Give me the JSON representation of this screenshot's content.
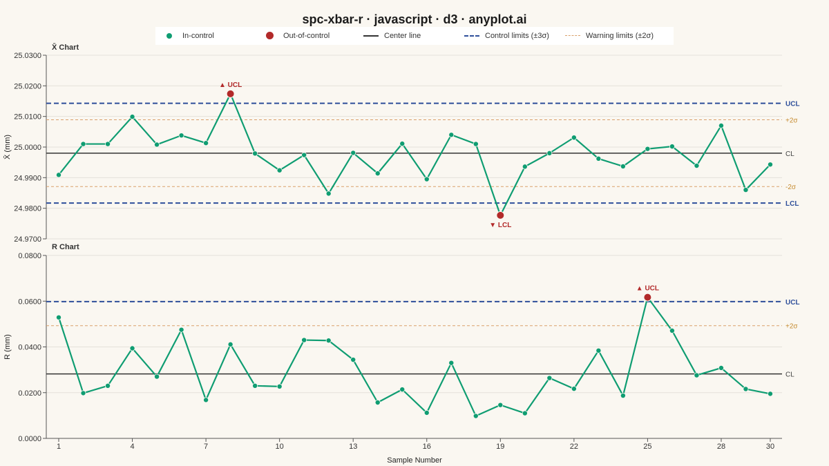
{
  "title": "spc-xbar-r · javascript · d3 · anyplot.ai",
  "legend": {
    "in_control": "In-control",
    "out_of_control": "Out-of-control",
    "center_line": "Center line",
    "control_limits": "Control limits (±3σ)",
    "warning_limits": "Warning limits (±2σ)"
  },
  "colors": {
    "in_control": "#0F9D72",
    "out_of_control": "#B22A2A",
    "center_line": "#333333",
    "control_limit": "#2D4E9A",
    "warning_limit": "#D9A06A",
    "warning_label": "#C58A2E"
  },
  "chart_data": [
    {
      "type": "line",
      "title": "X̄ Chart",
      "xlabel": "",
      "ylabel": "X̄ (mm)",
      "ylim": [
        24.97,
        25.03
      ],
      "yticks": [
        24.97,
        24.98,
        24.99,
        25.0,
        25.01,
        25.02,
        25.03
      ],
      "ytick_labels": [
        "24.9700",
        "24.9800",
        "24.9900",
        "25.0000",
        "25.0100",
        "25.0200",
        "25.0300"
      ],
      "x": [
        1,
        2,
        3,
        4,
        5,
        6,
        7,
        8,
        9,
        10,
        11,
        12,
        13,
        14,
        15,
        16,
        17,
        18,
        19,
        20,
        21,
        22,
        23,
        24,
        25,
        26,
        27,
        28,
        29,
        30
      ],
      "values": [
        24.9909,
        25.001,
        25.001,
        25.0099,
        25.0008,
        25.0038,
        25.0013,
        25.0174,
        24.9979,
        24.9924,
        24.9974,
        24.9848,
        24.9981,
        24.9914,
        25.0011,
        24.9895,
        25.004,
        25.001,
        24.9777,
        24.9936,
        24.998,
        25.0031,
        24.9962,
        24.9937,
        24.9994,
        25.0002,
        24.9939,
        25.007,
        24.986,
        24.9943
      ],
      "out_of_control": [
        8,
        19
      ],
      "center_line": 24.998,
      "ucl": 25.0143,
      "lcl": 24.9817,
      "warning_upper": 25.0089,
      "warning_lower": 24.9871,
      "labels": {
        "cl": "CL",
        "ucl": "UCL",
        "lcl": "LCL",
        "plus2": "+2σ",
        "minus2": "-2σ"
      },
      "annotations": [
        {
          "x": 8,
          "text": "▲ UCL",
          "position": "above"
        },
        {
          "x": 19,
          "text": "▼ LCL",
          "position": "below"
        }
      ],
      "grid": true
    },
    {
      "type": "line",
      "title": "R Chart",
      "xlabel": "Sample Number",
      "ylabel": "R (mm)",
      "ylim": [
        0,
        0.08
      ],
      "yticks": [
        0,
        0.02,
        0.04,
        0.06,
        0.08
      ],
      "ytick_labels": [
        "0.0000",
        "0.0200",
        "0.0400",
        "0.0600",
        "0.0800"
      ],
      "x": [
        1,
        2,
        3,
        4,
        5,
        6,
        7,
        8,
        9,
        10,
        11,
        12,
        13,
        14,
        15,
        16,
        17,
        18,
        19,
        20,
        21,
        22,
        23,
        24,
        25,
        26,
        27,
        28,
        29,
        30
      ],
      "xtick_labels": [
        "1",
        "4",
        "7",
        "10",
        "13",
        "16",
        "19",
        "22",
        "25",
        "28",
        "30"
      ],
      "xtick_values": [
        1,
        4,
        7,
        10,
        13,
        16,
        19,
        22,
        25,
        28,
        30
      ],
      "values": [
        0.0529,
        0.0198,
        0.023,
        0.0394,
        0.027,
        0.0475,
        0.0168,
        0.0411,
        0.023,
        0.0227,
        0.043,
        0.0428,
        0.0344,
        0.0157,
        0.0214,
        0.0112,
        0.033,
        0.0098,
        0.0146,
        0.011,
        0.0264,
        0.0217,
        0.0384,
        0.0187,
        0.0617,
        0.0471,
        0.0276,
        0.0308,
        0.0216,
        0.0195
      ],
      "out_of_control": [
        25
      ],
      "center_line": 0.0282,
      "ucl": 0.0598,
      "warning_upper": 0.0493,
      "labels": {
        "cl": "CL",
        "ucl": "UCL",
        "plus2": "+2σ"
      },
      "annotations": [
        {
          "x": 25,
          "text": "▲ UCL",
          "position": "above"
        }
      ],
      "grid": true
    }
  ]
}
